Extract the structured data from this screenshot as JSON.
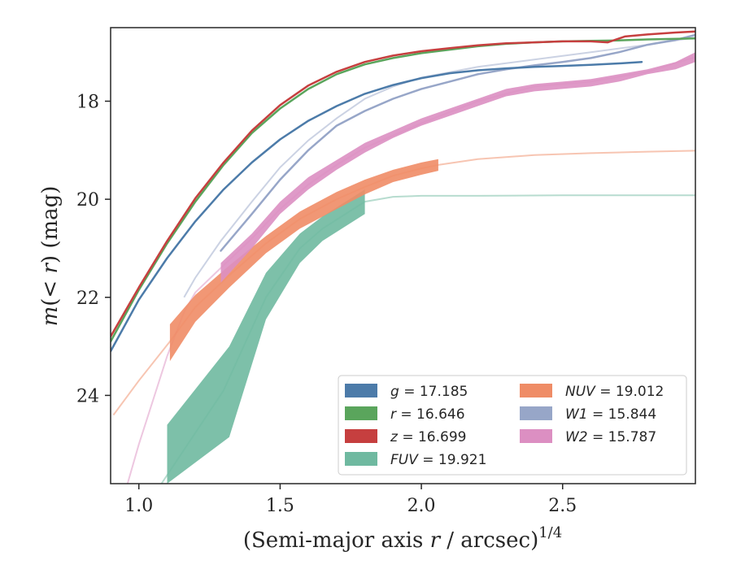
{
  "chart_data": {
    "type": "line",
    "xlabel": "(Semi-major axis r / arcsec)",
    "xlabel_main": "(Semi-major axis ",
    "xlabel_var": "r",
    "xlabel_rest": " / arcsec)",
    "xlabel_sup": "1/4",
    "ylabel_m": "m",
    "ylabel_paren": "(< ",
    "ylabel_r": "r",
    "ylabel_rest": ") (mag)",
    "xlim": [
      0.9,
      2.97
    ],
    "ylim": [
      25.8,
      16.5
    ],
    "y_inverted": true,
    "xticks": [
      1.0,
      1.5,
      2.0,
      2.5
    ],
    "xtick_labels": [
      "1.0",
      "1.5",
      "2.0",
      "2.5"
    ],
    "yticks": [
      18,
      20,
      22,
      24
    ],
    "ytick_labels": [
      "18",
      "20",
      "22",
      "24"
    ],
    "grid": false,
    "legend_position": "lower-right",
    "series": [
      {
        "band": "g",
        "value": "17.185",
        "color": "#4c7ba9",
        "style": "line",
        "x": [
          0.9,
          1.0,
          1.1,
          1.2,
          1.3,
          1.4,
          1.5,
          1.6,
          1.7,
          1.8,
          1.9,
          2.0,
          2.1,
          2.2,
          2.3,
          2.4,
          2.5,
          2.6,
          2.7,
          2.78
        ],
        "y": [
          23.1,
          22.05,
          21.2,
          20.45,
          19.8,
          19.25,
          18.78,
          18.4,
          18.1,
          17.85,
          17.67,
          17.53,
          17.43,
          17.37,
          17.33,
          17.3,
          17.28,
          17.26,
          17.23,
          17.2
        ]
      },
      {
        "band": "r",
        "value": "16.646",
        "color": "#5aa55c",
        "style": "line",
        "x": [
          0.9,
          1.0,
          1.1,
          1.2,
          1.3,
          1.4,
          1.5,
          1.6,
          1.7,
          1.8,
          1.9,
          2.0,
          2.1,
          2.2,
          2.3,
          2.4,
          2.5,
          2.6,
          2.7,
          2.8,
          2.97
        ],
        "y": [
          22.9,
          21.85,
          20.9,
          20.05,
          19.3,
          18.65,
          18.15,
          17.75,
          17.45,
          17.25,
          17.12,
          17.02,
          16.95,
          16.88,
          16.83,
          16.8,
          16.78,
          16.77,
          16.76,
          16.74,
          16.72
        ]
      },
      {
        "band": "z",
        "value": "16.699",
        "color": "#c63f3f",
        "style": "line",
        "x": [
          0.9,
          1.0,
          1.1,
          1.2,
          1.3,
          1.4,
          1.5,
          1.6,
          1.7,
          1.8,
          1.9,
          2.0,
          2.1,
          2.2,
          2.3,
          2.4,
          2.5,
          2.6,
          2.66,
          2.72,
          2.8,
          2.9,
          2.97
        ],
        "y": [
          22.8,
          21.8,
          20.85,
          19.98,
          19.25,
          18.6,
          18.08,
          17.68,
          17.4,
          17.2,
          17.07,
          16.98,
          16.92,
          16.86,
          16.82,
          16.8,
          16.78,
          16.78,
          16.8,
          16.68,
          16.64,
          16.6,
          16.58
        ]
      },
      {
        "band": "FUV",
        "value": "19.921",
        "color": "#6fb9a0",
        "style": "band",
        "x": [
          1.1,
          1.32,
          1.45,
          1.57,
          1.65,
          1.8
        ],
        "y_upper": [
          24.6,
          23.0,
          21.5,
          20.7,
          20.35,
          19.8
        ],
        "y_lower": [
          25.8,
          24.85,
          22.45,
          21.3,
          20.85,
          20.3
        ],
        "faint_x": [
          1.08,
          1.3,
          1.45,
          1.57,
          1.65,
          1.8,
          1.9,
          2.0,
          2.2,
          2.5,
          2.97
        ],
        "faint_y": [
          25.8,
          23.9,
          22.0,
          21.0,
          20.6,
          20.05,
          19.95,
          19.93,
          19.93,
          19.92,
          19.92
        ]
      },
      {
        "band": "NUV",
        "value": "19.012",
        "color": "#ef8c66",
        "style": "band",
        "x": [
          1.11,
          1.2,
          1.32,
          1.45,
          1.57,
          1.7,
          1.8,
          1.9,
          2.0,
          2.06
        ],
        "y_upper": [
          22.55,
          21.95,
          21.35,
          20.75,
          20.25,
          19.85,
          19.6,
          19.4,
          19.25,
          19.18
        ],
        "y_lower": [
          23.3,
          22.5,
          21.8,
          21.1,
          20.6,
          20.2,
          19.9,
          19.65,
          19.5,
          19.42
        ],
        "faint_x": [
          0.91,
          1.0,
          1.11,
          1.2,
          1.32,
          1.45,
          1.57,
          1.7,
          1.8,
          1.9,
          2.0,
          2.06,
          2.2,
          2.4,
          2.6,
          2.8,
          2.97
        ],
        "faint_y": [
          24.4,
          23.7,
          22.9,
          22.2,
          21.55,
          20.9,
          20.4,
          20.0,
          19.75,
          19.52,
          19.37,
          19.3,
          19.18,
          19.1,
          19.06,
          19.03,
          19.01
        ]
      },
      {
        "band": "W1",
        "value": "15.844",
        "color": "#97a6c8",
        "style": "line",
        "x": [
          1.29,
          1.4,
          1.5,
          1.6,
          1.7,
          1.8,
          1.9,
          2.0,
          2.1,
          2.2,
          2.3,
          2.4,
          2.5,
          2.6,
          2.7,
          2.8,
          2.9,
          2.97
        ],
        "y": [
          21.05,
          20.3,
          19.6,
          19.0,
          18.5,
          18.2,
          17.95,
          17.75,
          17.6,
          17.45,
          17.35,
          17.27,
          17.2,
          17.12,
          17.0,
          16.85,
          16.75,
          16.65
        ],
        "faint_x": [
          1.16,
          1.2,
          1.29,
          1.4,
          1.5,
          1.6,
          1.7,
          1.8,
          1.9,
          2.0,
          2.2,
          2.4,
          2.6,
          2.8,
          2.97
        ],
        "faint_y": [
          22.0,
          21.6,
          20.85,
          20.05,
          19.35,
          18.8,
          18.35,
          17.95,
          17.7,
          17.52,
          17.3,
          17.15,
          17.0,
          16.85,
          16.7
        ]
      },
      {
        "band": "W2",
        "value": "15.787",
        "color": "#dc8fc2",
        "style": "band",
        "x": [
          1.29,
          1.4,
          1.5,
          1.6,
          1.7,
          1.8,
          1.9,
          2.0,
          2.1,
          2.2,
          2.3,
          2.4,
          2.5,
          2.6,
          2.7,
          2.8,
          2.9,
          2.97
        ],
        "y_upper": [
          21.3,
          20.7,
          20.05,
          19.55,
          19.2,
          18.85,
          18.6,
          18.35,
          18.15,
          17.95,
          17.75,
          17.65,
          17.6,
          17.55,
          17.45,
          17.35,
          17.2,
          17.0
        ],
        "y_lower": [
          21.7,
          21.0,
          20.3,
          19.8,
          19.4,
          19.05,
          18.75,
          18.5,
          18.3,
          18.1,
          17.9,
          17.8,
          17.75,
          17.7,
          17.6,
          17.45,
          17.35,
          17.2
        ],
        "faint_x": [
          0.96,
          1.0,
          1.05,
          1.1,
          1.16,
          1.2,
          1.29,
          1.4,
          1.5,
          1.6,
          1.7,
          1.8,
          2.0,
          2.2,
          2.4,
          2.6,
          2.8,
          2.97
        ],
        "faint_y": [
          25.8,
          25.0,
          24.1,
          23.2,
          22.3,
          21.9,
          21.4,
          20.8,
          20.2,
          19.7,
          19.3,
          18.95,
          18.45,
          18.0,
          17.7,
          17.6,
          17.4,
          17.1
        ]
      }
    ]
  }
}
